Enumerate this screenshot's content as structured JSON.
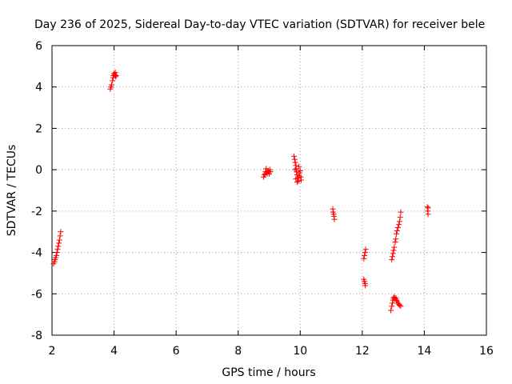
{
  "chart_data": {
    "type": "scatter",
    "title": "Day 236 of 2025, Sidereal Day-to-day VTEC variation (SDTVAR) for receiver bele",
    "xlabel": "GPS time / hours",
    "ylabel": "SDTVAR / TECUs",
    "xlim": [
      2,
      16
    ],
    "ylim": [
      -8,
      6
    ],
    "xticks": [
      "2",
      "4",
      "6",
      "8",
      "10",
      "12",
      "14",
      "16"
    ],
    "yticks": [
      "6",
      "4",
      "2",
      "0",
      "-2",
      "-4",
      "-6",
      "-8"
    ],
    "grid": true,
    "marker": "plus",
    "color": "#ff0000",
    "series": [
      {
        "name": "SDTVAR",
        "points": [
          [
            2.05,
            -4.55
          ],
          [
            2.08,
            -4.45
          ],
          [
            2.1,
            -4.35
          ],
          [
            2.12,
            -4.25
          ],
          [
            2.14,
            -4.15
          ],
          [
            2.16,
            -4.0
          ],
          [
            2.18,
            -3.85
          ],
          [
            2.2,
            -3.7
          ],
          [
            2.22,
            -3.55
          ],
          [
            2.24,
            -3.4
          ],
          [
            2.26,
            -3.2
          ],
          [
            2.28,
            -3.0
          ],
          [
            3.88,
            3.9
          ],
          [
            3.9,
            4.0
          ],
          [
            3.92,
            4.1
          ],
          [
            3.95,
            4.3
          ],
          [
            3.97,
            4.45
          ],
          [
            3.98,
            4.55
          ],
          [
            4.0,
            4.65
          ],
          [
            4.02,
            4.6
          ],
          [
            4.04,
            4.7
          ],
          [
            4.05,
            4.5
          ],
          [
            4.07,
            4.55
          ],
          [
            8.82,
            -0.35
          ],
          [
            8.85,
            -0.25
          ],
          [
            8.87,
            -0.2
          ],
          [
            8.88,
            -0.1
          ],
          [
            8.9,
            0.05
          ],
          [
            8.92,
            -0.15
          ],
          [
            8.94,
            -0.2
          ],
          [
            8.96,
            -0.05
          ],
          [
            8.98,
            -0.1
          ],
          [
            9.0,
            -0.2
          ],
          [
            9.02,
            0.0
          ],
          [
            9.04,
            -0.1
          ],
          [
            9.8,
            0.65
          ],
          [
            9.82,
            0.5
          ],
          [
            9.84,
            0.35
          ],
          [
            9.86,
            0.2
          ],
          [
            9.87,
            0.05
          ],
          [
            9.88,
            -0.1
          ],
          [
            9.9,
            -0.25
          ],
          [
            9.92,
            -0.4
          ],
          [
            9.94,
            -0.55
          ],
          [
            9.9,
            -0.6
          ],
          [
            9.86,
            -0.45
          ],
          [
            9.96,
            -0.3
          ],
          [
            9.98,
            -0.15
          ],
          [
            10.0,
            -0.05
          ],
          [
            10.02,
            -0.35
          ],
          [
            10.03,
            -0.5
          ],
          [
            9.84,
            0.0
          ],
          [
            9.96,
            0.15
          ],
          [
            11.05,
            -1.9
          ],
          [
            11.06,
            -2.05
          ],
          [
            11.08,
            -2.15
          ],
          [
            11.09,
            -2.25
          ],
          [
            11.1,
            -2.4
          ],
          [
            12.05,
            -4.3
          ],
          [
            12.07,
            -4.15
          ],
          [
            12.09,
            -4.0
          ],
          [
            12.11,
            -3.85
          ],
          [
            12.05,
            -5.3
          ],
          [
            12.07,
            -5.4
          ],
          [
            12.09,
            -5.5
          ],
          [
            12.1,
            -5.6
          ],
          [
            12.95,
            -4.35
          ],
          [
            12.97,
            -4.2
          ],
          [
            12.99,
            -4.05
          ],
          [
            13.01,
            -3.9
          ],
          [
            13.03,
            -3.75
          ],
          [
            13.06,
            -3.5
          ],
          [
            13.08,
            -3.35
          ],
          [
            13.1,
            -3.1
          ],
          [
            13.12,
            -2.95
          ],
          [
            13.15,
            -2.8
          ],
          [
            13.18,
            -2.65
          ],
          [
            13.2,
            -2.5
          ],
          [
            13.22,
            -2.3
          ],
          [
            13.24,
            -2.05
          ],
          [
            12.92,
            -6.8
          ],
          [
            12.95,
            -6.6
          ],
          [
            12.97,
            -6.45
          ],
          [
            12.99,
            -6.3
          ],
          [
            13.01,
            -6.2
          ],
          [
            13.03,
            -6.15
          ],
          [
            13.05,
            -6.25
          ],
          [
            13.08,
            -6.2
          ],
          [
            13.1,
            -6.3
          ],
          [
            13.12,
            -6.35
          ],
          [
            13.15,
            -6.45
          ],
          [
            13.18,
            -6.5
          ],
          [
            13.2,
            -6.55
          ],
          [
            13.24,
            -6.6
          ],
          [
            14.1,
            -1.8
          ],
          [
            14.12,
            -1.85
          ],
          [
            14.11,
            -2.0
          ],
          [
            14.12,
            -2.15
          ]
        ]
      }
    ]
  }
}
